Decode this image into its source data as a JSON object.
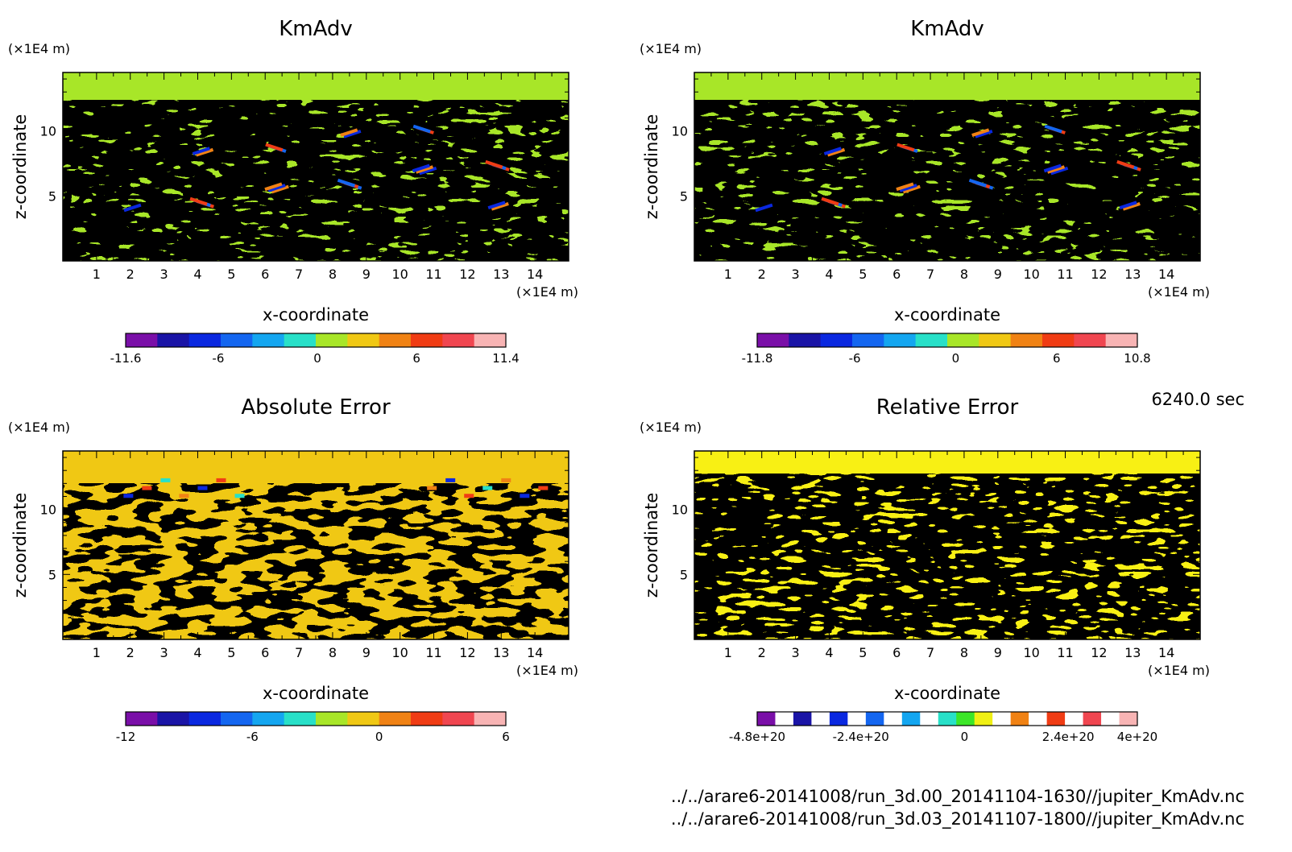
{
  "time_label": "6240.0 sec",
  "files": [
    "../../arare6-20141008/run_3d.00_20141104-1630//jupiter_KmAdv.nc",
    "../../arare6-20141008/run_3d.03_20141107-1800//jupiter_KmAdv.nc"
  ],
  "chart_data": [
    {
      "type": "heatmap",
      "title": "KmAdv",
      "xlabel": "x-coordinate",
      "ylabel": "z-coordinate",
      "x_unit": "(×1E4 m)",
      "y_unit": "(×1E4 m)",
      "xlim": [
        0,
        15
      ],
      "ylim": [
        0,
        14.5
      ],
      "x_ticks": [
        1,
        2,
        3,
        4,
        5,
        6,
        7,
        8,
        9,
        10,
        11,
        12,
        13,
        14
      ],
      "y_ticks": [
        5,
        10
      ],
      "colorbar": {
        "colors": [
          "#7a0fa8",
          "#1a14a6",
          "#0a28e0",
          "#1466f0",
          "#14a6f0",
          "#28e0c8",
          "#a8e628",
          "#f0c814",
          "#f08214",
          "#f03c14",
          "#f04650",
          "#f8b4b4"
        ],
        "tick_labels": [
          "-11.6",
          "-6",
          "0",
          "6",
          "11.4"
        ]
      },
      "background": "#a8e628"
    },
    {
      "type": "heatmap",
      "title": "KmAdv",
      "xlabel": "x-coordinate",
      "ylabel": "z-coordinate",
      "x_unit": "(×1E4 m)",
      "y_unit": "(×1E4 m)",
      "xlim": [
        0,
        15
      ],
      "ylim": [
        0,
        14.5
      ],
      "x_ticks": [
        1,
        2,
        3,
        4,
        5,
        6,
        7,
        8,
        9,
        10,
        11,
        12,
        13,
        14
      ],
      "y_ticks": [
        5,
        10
      ],
      "colorbar": {
        "colors": [
          "#7a0fa8",
          "#1a14a6",
          "#0a28e0",
          "#1466f0",
          "#14a6f0",
          "#28e0c8",
          "#a8e628",
          "#f0c814",
          "#f08214",
          "#f03c14",
          "#f04650",
          "#f8b4b4"
        ],
        "tick_labels": [
          "-11.8",
          "-6",
          "0",
          "6",
          "10.8"
        ]
      },
      "background": "#a8e628"
    },
    {
      "type": "heatmap",
      "title": "Absolute Error",
      "xlabel": "x-coordinate",
      "ylabel": "z-coordinate",
      "x_unit": "(×1E4 m)",
      "y_unit": "(×1E4 m)",
      "xlim": [
        0,
        15
      ],
      "ylim": [
        0,
        14.5
      ],
      "x_ticks": [
        1,
        2,
        3,
        4,
        5,
        6,
        7,
        8,
        9,
        10,
        11,
        12,
        13,
        14
      ],
      "y_ticks": [
        5,
        10
      ],
      "colorbar": {
        "colors": [
          "#7a0fa8",
          "#1a14a6",
          "#0a28e0",
          "#1466f0",
          "#14a6f0",
          "#28e0c8",
          "#a8e628",
          "#f0c814",
          "#f08214",
          "#f03c14",
          "#f04650",
          "#f8b4b4"
        ],
        "tick_labels": [
          "-12",
          "-6",
          "0",
          "6"
        ]
      },
      "background": "#f0c814"
    },
    {
      "type": "heatmap",
      "title": "Relative Error",
      "xlabel": "x-coordinate",
      "ylabel": "z-coordinate",
      "x_unit": "(×1E4 m)",
      "y_unit": "(×1E4 m)",
      "xlim": [
        0,
        15
      ],
      "ylim": [
        0,
        14.5
      ],
      "x_ticks": [
        1,
        2,
        3,
        4,
        5,
        6,
        7,
        8,
        9,
        10,
        11,
        12,
        13,
        14
      ],
      "y_ticks": [
        5,
        10
      ],
      "colorbar": {
        "colors": [
          "#7a0fa8",
          "#ffffff",
          "#1a14a6",
          "#ffffff",
          "#0a28e0",
          "#ffffff",
          "#1466f0",
          "#ffffff",
          "#14a6f0",
          "#ffffff",
          "#28e0c8",
          "#3ce628",
          "#f0f014",
          "#ffffff",
          "#f08214",
          "#ffffff",
          "#f03c14",
          "#ffffff",
          "#f04650",
          "#ffffff",
          "#f8b4b4"
        ],
        "tick_labels": [
          "-4.8e+20",
          "-2.4e+20",
          "0",
          "2.4e+20",
          "4e+20"
        ]
      },
      "background": "#f8f014"
    }
  ]
}
